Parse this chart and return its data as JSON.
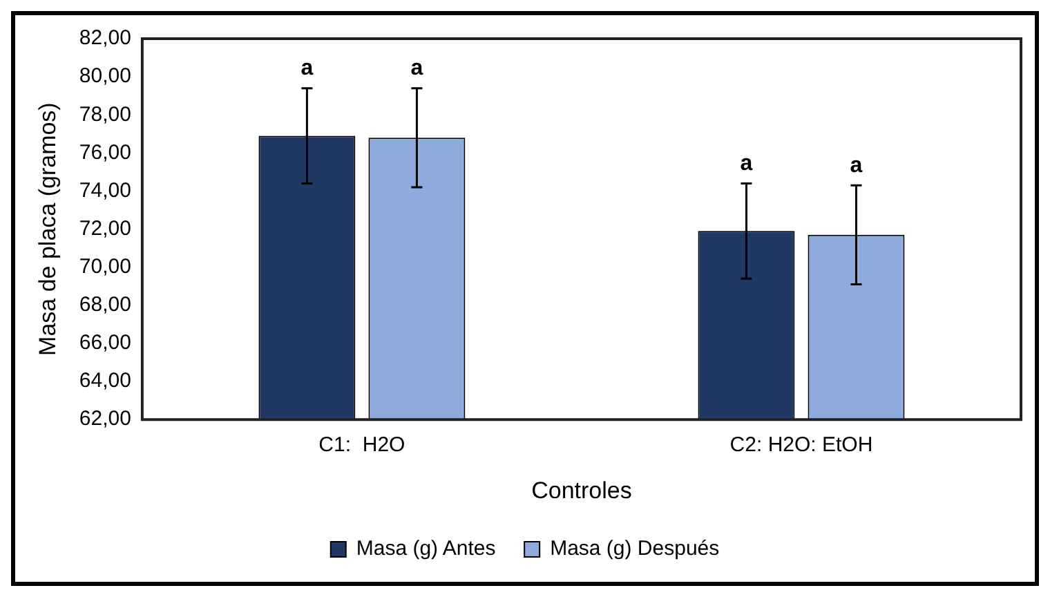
{
  "chart_data": {
    "type": "bar",
    "xlabel": "Controles",
    "ylabel": "Masa de placa (gramos)",
    "categories": [
      "C1:  H2O",
      "C2: H2O: EtOH"
    ],
    "series": [
      {
        "name": "Masa (g) Antes",
        "color": "#203864",
        "values": [
          76.9,
          71.9
        ],
        "errors": [
          2.5,
          2.5
        ]
      },
      {
        "name": "Masa (g) Después",
        "color": "#8faadc",
        "values": [
          76.8,
          71.7
        ],
        "errors": [
          2.6,
          2.6
        ]
      }
    ],
    "ylim": [
      62,
      82
    ],
    "yticks": [
      {
        "value": 62,
        "label": "62,00"
      },
      {
        "value": 64,
        "label": "64,00"
      },
      {
        "value": 66,
        "label": "66,00"
      },
      {
        "value": 68,
        "label": "68,00"
      },
      {
        "value": 70,
        "label": "70,00"
      },
      {
        "value": 72,
        "label": "72,00"
      },
      {
        "value": 74,
        "label": "74,00"
      },
      {
        "value": 76,
        "label": "76,00"
      },
      {
        "value": 78,
        "label": "78,00"
      },
      {
        "value": 80,
        "label": "80,00"
      },
      {
        "value": 82,
        "label": "82,00"
      }
    ],
    "annotations": [
      "a",
      "a",
      "a",
      "a"
    ],
    "grid": false,
    "legend": "bottom"
  }
}
